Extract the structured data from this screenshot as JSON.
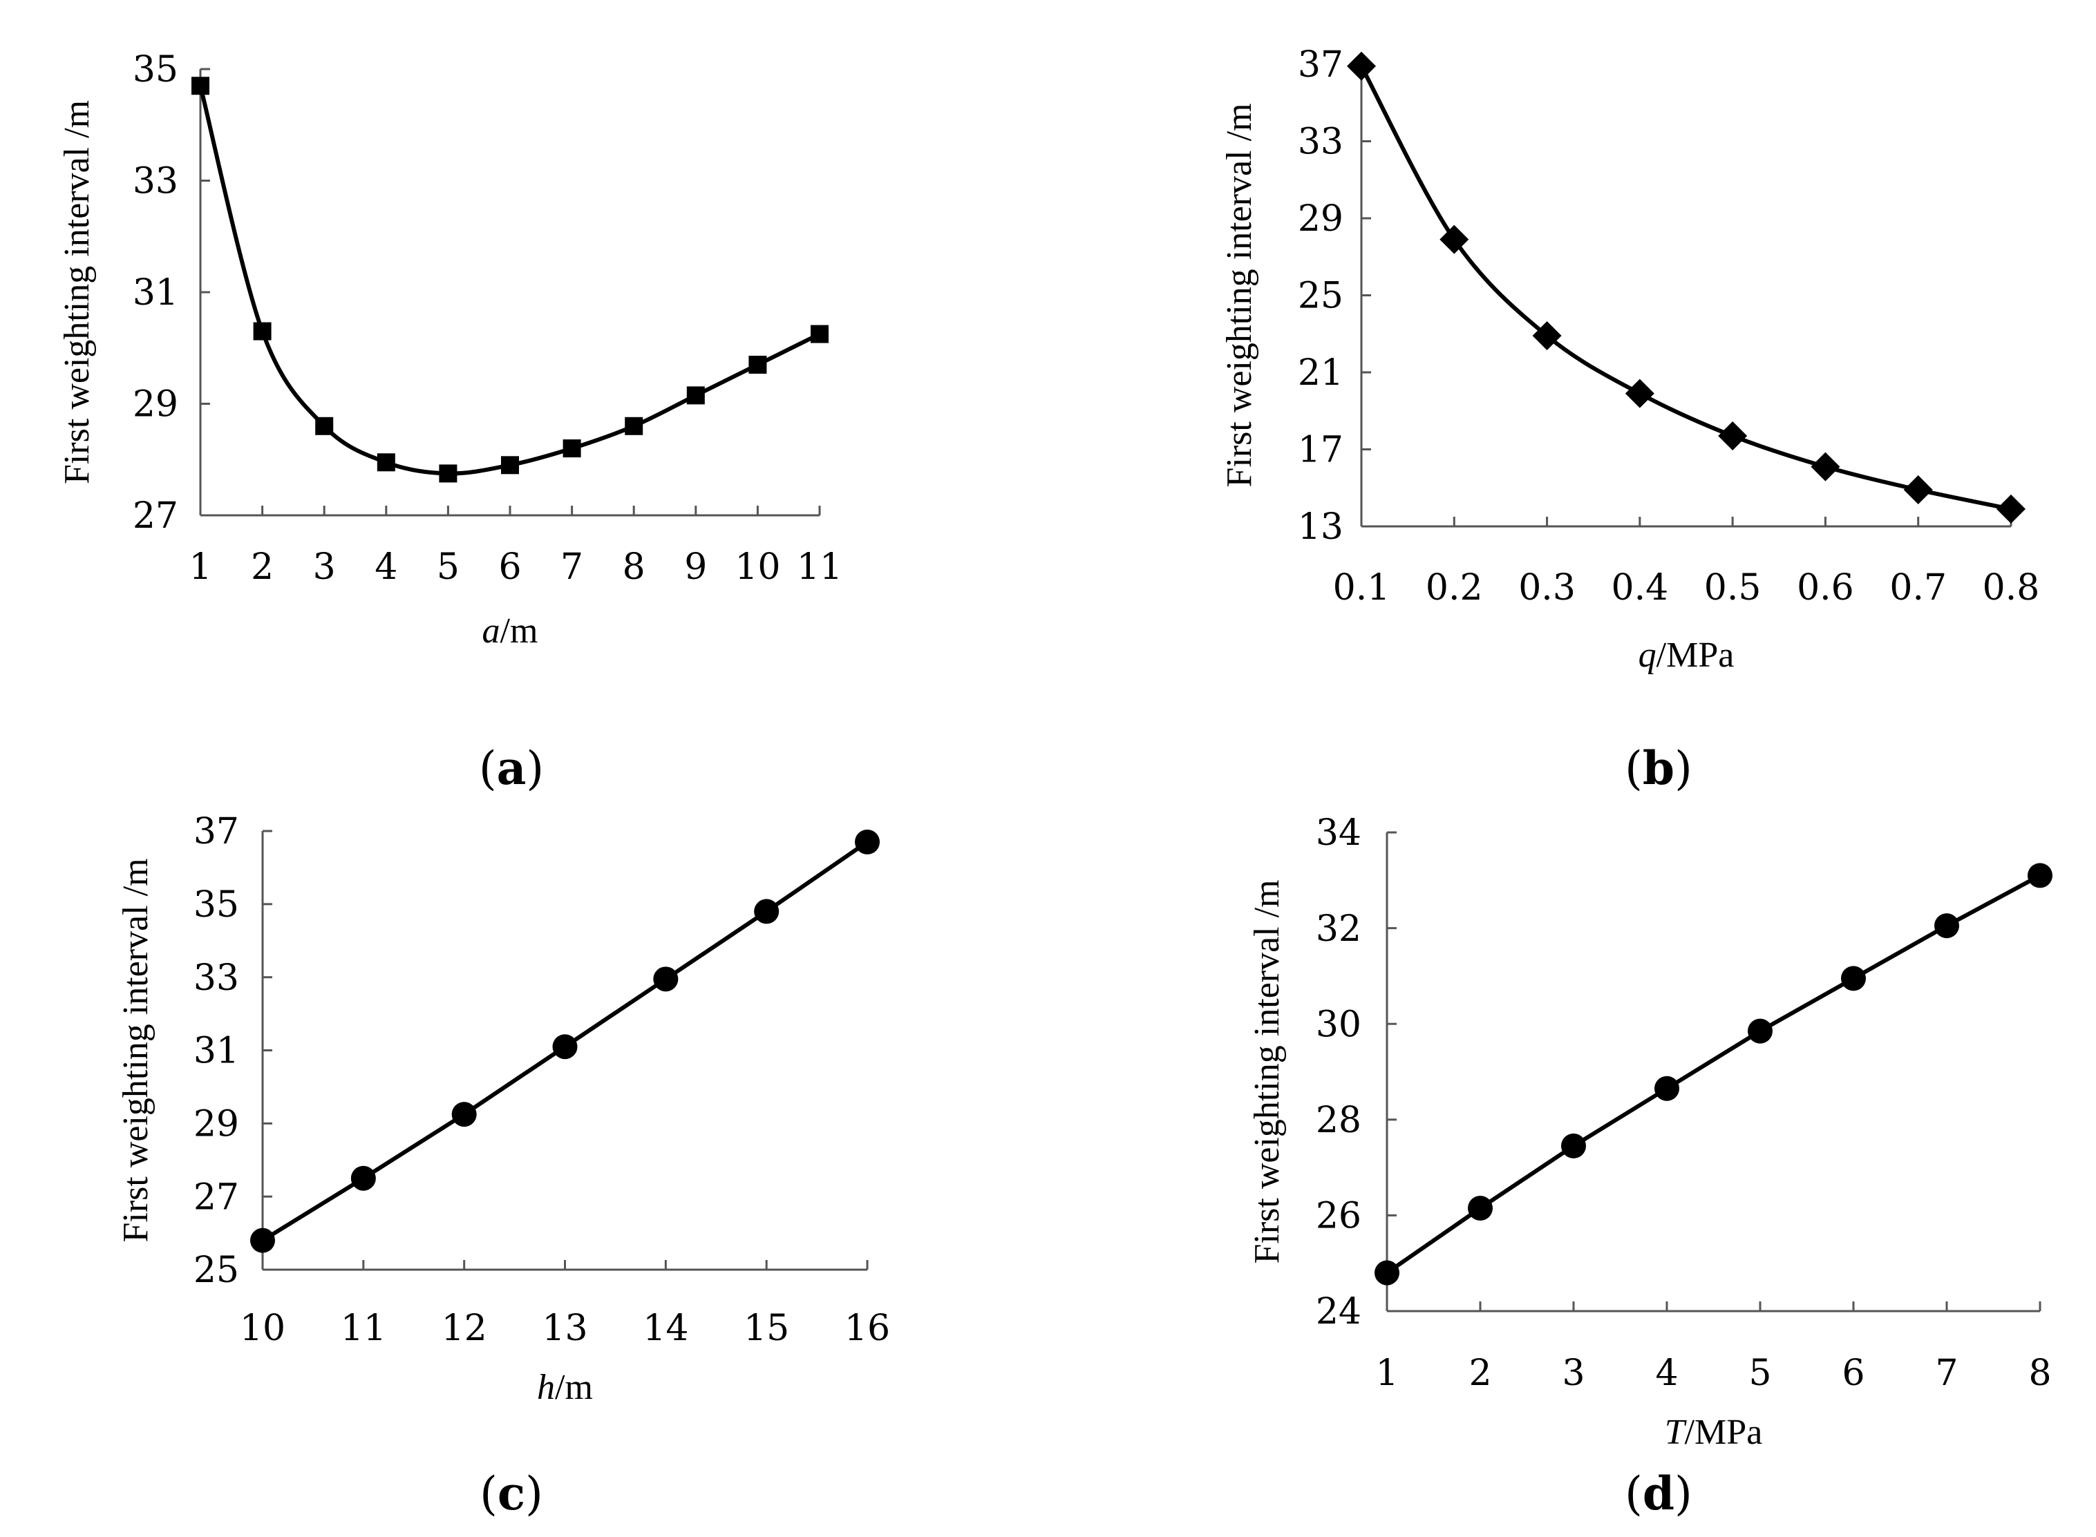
{
  "chart_data": [
    {
      "type": "line",
      "panel_label": "a",
      "x": [
        1,
        2,
        3,
        4,
        5,
        6,
        7,
        8,
        9,
        10,
        11
      ],
      "values": [
        34.7,
        30.3,
        28.6,
        27.95,
        27.75,
        27.9,
        28.2,
        28.6,
        29.15,
        29.7,
        30.25
      ],
      "xlabel_var": "a",
      "xlabel_unit": "/m",
      "ylabel": "First weighting interval /m",
      "xlim": [
        1,
        11
      ],
      "ylim": [
        27,
        35
      ],
      "yticks": [
        27,
        29,
        31,
        33,
        35
      ],
      "xticks": [
        1,
        2,
        3,
        4,
        5,
        6,
        7,
        8,
        9,
        10,
        11
      ],
      "xtick_labels": [
        "1",
        "2",
        "3",
        "4",
        "5",
        "6",
        "7",
        "8",
        "9",
        "10",
        "11"
      ],
      "marker": "square",
      "smooth": true,
      "grid": false
    },
    {
      "type": "line",
      "panel_label": "b",
      "x": [
        0.1,
        0.2,
        0.3,
        0.4,
        0.5,
        0.6,
        0.7,
        0.8
      ],
      "values": [
        36.9,
        27.9,
        22.9,
        19.9,
        17.7,
        16.1,
        14.9,
        13.9
      ],
      "xlabel_var": "q",
      "xlabel_unit": "/MPa",
      "ylabel": "First weighting interval /m",
      "xlim": [
        0.1,
        0.8
      ],
      "ylim": [
        13,
        37
      ],
      "yticks": [
        13,
        17,
        21,
        25,
        29,
        33,
        37
      ],
      "xticks": [
        0.1,
        0.2,
        0.3,
        0.4,
        0.5,
        0.6,
        0.7,
        0.8
      ],
      "xtick_labels": [
        "0.1",
        "0.2",
        "0.3",
        "0.4",
        "0.5",
        "0.6",
        "0.7",
        "0.8"
      ],
      "marker": "diamond",
      "smooth": true,
      "grid": false
    },
    {
      "type": "line",
      "panel_label": "c",
      "x": [
        10,
        11,
        12,
        13,
        14,
        15,
        16
      ],
      "values": [
        25.8,
        27.5,
        29.25,
        31.1,
        32.95,
        34.8,
        36.7
      ],
      "xlabel_var": "h",
      "xlabel_unit": "/m",
      "ylabel": "First weighting interval /m",
      "xlim": [
        10,
        16
      ],
      "ylim": [
        25,
        37
      ],
      "yticks": [
        25,
        27,
        29,
        31,
        33,
        35,
        37
      ],
      "xticks": [
        10,
        11,
        12,
        13,
        14,
        15,
        16
      ],
      "xtick_labels": [
        "10",
        "11",
        "12",
        "13",
        "14",
        "15",
        "16"
      ],
      "marker": "circle",
      "smooth": false,
      "grid": false
    },
    {
      "type": "line",
      "panel_label": "d",
      "x": [
        1,
        2,
        3,
        4,
        5,
        6,
        7,
        8
      ],
      "values": [
        24.8,
        26.15,
        27.45,
        28.65,
        29.85,
        30.95,
        32.05,
        33.1
      ],
      "xlabel_var": "T",
      "xlabel_unit": "/MPa",
      "ylabel": "First weighting interval /m",
      "xlim": [
        1,
        8
      ],
      "ylim": [
        24,
        34
      ],
      "yticks": [
        24,
        26,
        28,
        30,
        32,
        34
      ],
      "xticks": [
        1,
        2,
        3,
        4,
        5,
        6,
        7,
        8
      ],
      "xtick_labels": [
        "1",
        "2",
        "3",
        "4",
        "5",
        "6",
        "7",
        "8"
      ],
      "marker": "circle",
      "smooth": false,
      "grid": false
    }
  ],
  "colors": {
    "line": "#000000",
    "marker": "#000000",
    "axis": "#555555",
    "background": "#ffffff"
  }
}
